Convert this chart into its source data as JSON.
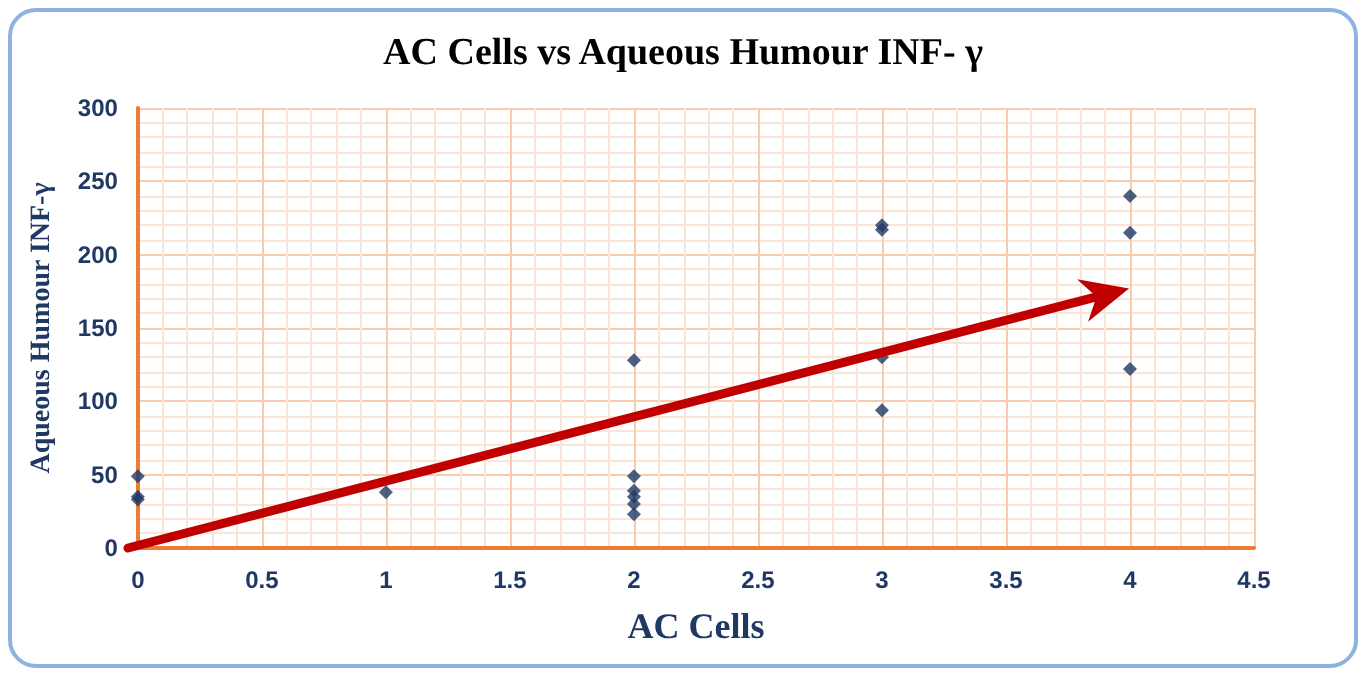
{
  "chart_data": {
    "type": "scatter",
    "title": "AC Cells vs Aqueous Humour INF- γ",
    "xlabel": "AC Cells",
    "ylabel": "Aqueous Humour INF-γ",
    "series": [
      {
        "type": "scatter",
        "color": "#1f3864",
        "marker": "diamond",
        "x": [
          0,
          0,
          0,
          1,
          2,
          2,
          2,
          2,
          2,
          2,
          3,
          3,
          3,
          3,
          4,
          4,
          4
        ],
        "values": [
          49,
          35,
          33,
          38,
          128,
          49,
          39,
          35,
          30,
          23,
          220,
          217,
          130,
          94,
          240,
          215,
          122
        ]
      }
    ],
    "xlim": [
      0,
      4.5
    ],
    "xticks": [
      0,
      0.5,
      1,
      1.5,
      2,
      2.5,
      3,
      3.5,
      4,
      4.5
    ],
    "ylim": [
      0,
      300
    ],
    "yticks": [
      0,
      50,
      100,
      150,
      200,
      250,
      300
    ],
    "grid": true
  }
}
